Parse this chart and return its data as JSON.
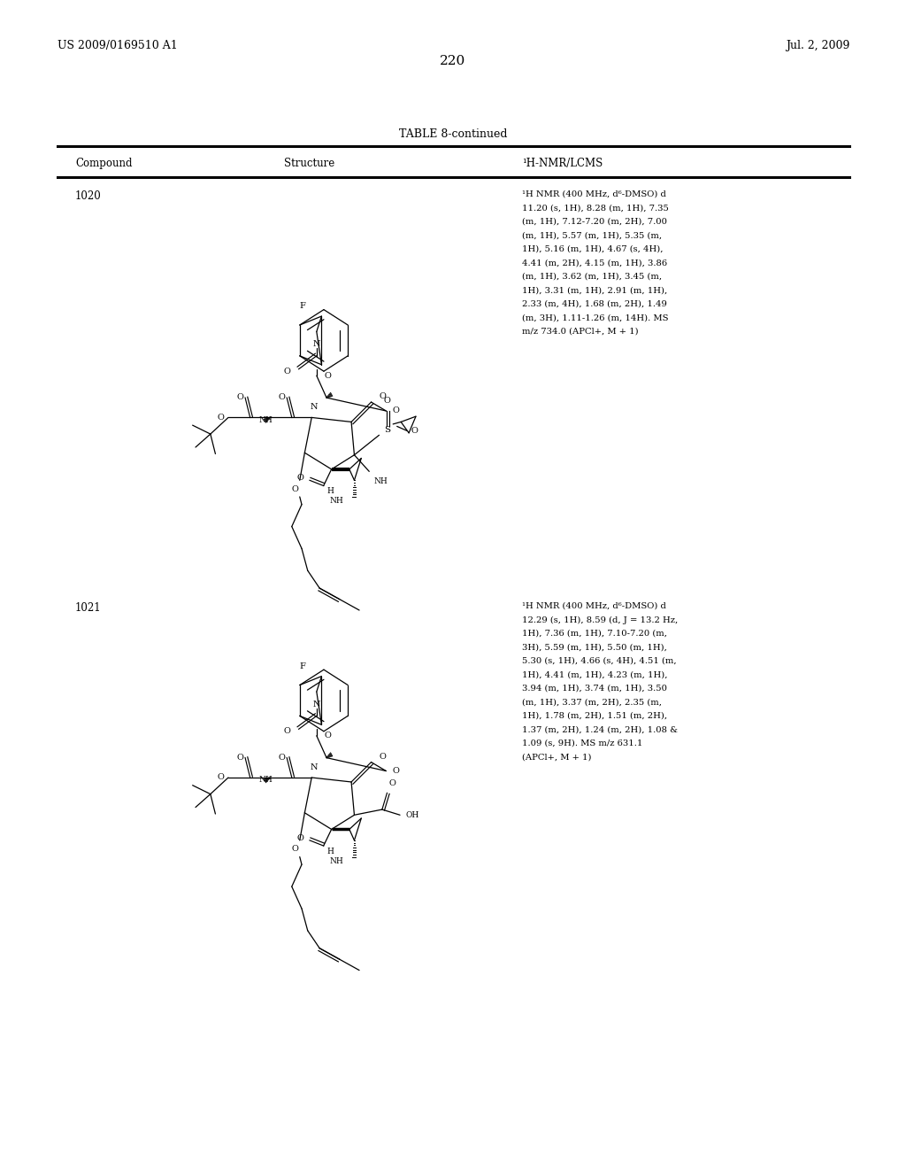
{
  "page_number": "220",
  "top_left": "US 2009/0169510 A1",
  "top_right": "Jul. 2, 2009",
  "table_title": "TABLE 8-continued",
  "col_compound": "Compound",
  "col_structure": "Structure",
  "col_nmr": "¹H-NMR/LCMS",
  "compound1_id": "1020",
  "compound1_nmr": [
    "¹H NMR (400 MHz, d⁶-DMSO) d",
    "11.20 (s, 1H), 8.28 (m, 1H), 7.35",
    "(m, 1H), 7.12-7.20 (m, 2H), 7.00",
    "(m, 1H), 5.57 (m, 1H), 5.35 (m,",
    "1H), 5.16 (m, 1H), 4.67 (s, 4H),",
    "4.41 (m, 2H), 4.15 (m, 1H), 3.86",
    "(m, 1H), 3.62 (m, 1H), 3.45 (m,",
    "1H), 3.31 (m, 1H), 2.91 (m, 1H),",
    "2.33 (m, 4H), 1.68 (m, 2H), 1.49",
    "(m, 3H), 1.11-1.26 (m, 14H). MS",
    "m/z 734.0 (APCl+, M + 1)"
  ],
  "compound2_id": "1021",
  "compound2_nmr": [
    "¹H NMR (400 MHz, d⁶-DMSO) d",
    "12.29 (s, 1H), 8.59 (d, J = 13.2 Hz,",
    "1H), 7.36 (m, 1H), 7.10-7.20 (m,",
    "3H), 5.59 (m, 1H), 5.50 (m, 1H),",
    "5.30 (s, 1H), 4.66 (s, 4H), 4.51 (m,",
    "1H), 4.41 (m, 1H), 4.23 (m, 1H),",
    "3.94 (m, 1H), 3.74 (m, 1H), 3.50",
    "(m, 1H), 3.37 (m, 2H), 2.35 (m,",
    "1H), 1.78 (m, 2H), 1.51 (m, 2H),",
    "1.37 (m, 2H), 1.24 (m, 2H), 1.08 &",
    "1.09 (s, 9H). MS m/z 631.1",
    "(APCl+, M + 1)"
  ]
}
